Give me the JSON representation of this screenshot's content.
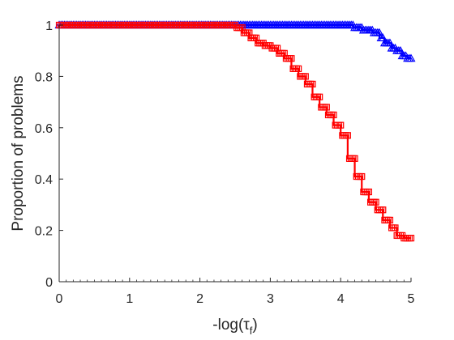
{
  "chart_data": {
    "type": "line",
    "title": "",
    "xlabel": "-log(τ",
    "xlabel_sub": "f",
    "xlabel_close": ")",
    "ylabel": "Proportion of problems",
    "xlim": [
      0,
      5
    ],
    "ylim": [
      0,
      1
    ],
    "xticks": [
      0,
      1,
      2,
      3,
      4,
      5
    ],
    "xtick_labels": [
      "0",
      "1",
      "2",
      "3",
      "4",
      "5"
    ],
    "yticks": [
      0,
      0.2,
      0.4,
      0.6,
      0.8,
      1
    ],
    "ytick_labels": [
      "0",
      "0.2",
      "0.4",
      "0.6",
      "0.8",
      "1"
    ],
    "grid": false,
    "legend": null,
    "series": [
      {
        "color": "#0000ff",
        "marker": "triangle",
        "x": [
          0,
          0.5,
          1.0,
          1.5,
          2.0,
          2.5,
          3.0,
          3.5,
          4.0,
          4.1,
          4.18,
          4.3,
          4.45,
          4.55,
          4.62,
          4.72,
          4.8,
          4.87,
          4.95,
          5.0
        ],
        "y": [
          1,
          1,
          1,
          1,
          1,
          1,
          1,
          1,
          1,
          1.0,
          0.99,
          0.98,
          0.97,
          0.95,
          0.93,
          0.91,
          0.9,
          0.88,
          0.87,
          0.87
        ]
      },
      {
        "color": "#ff0000",
        "marker": "square",
        "x": [
          0,
          0.5,
          1.0,
          1.5,
          2.0,
          2.4,
          2.5,
          2.6,
          2.7,
          2.8,
          2.9,
          3.0,
          3.1,
          3.2,
          3.3,
          3.4,
          3.5,
          3.6,
          3.7,
          3.8,
          3.9,
          4.0,
          4.1,
          4.2,
          4.3,
          4.4,
          4.5,
          4.6,
          4.7,
          4.8,
          4.9,
          5.0
        ],
        "y": [
          1,
          1,
          1,
          1,
          1,
          1,
          0.99,
          0.97,
          0.95,
          0.93,
          0.92,
          0.91,
          0.89,
          0.87,
          0.83,
          0.8,
          0.77,
          0.72,
          0.68,
          0.65,
          0.61,
          0.57,
          0.48,
          0.41,
          0.35,
          0.31,
          0.28,
          0.24,
          0.21,
          0.18,
          0.17,
          0.17
        ]
      }
    ]
  }
}
